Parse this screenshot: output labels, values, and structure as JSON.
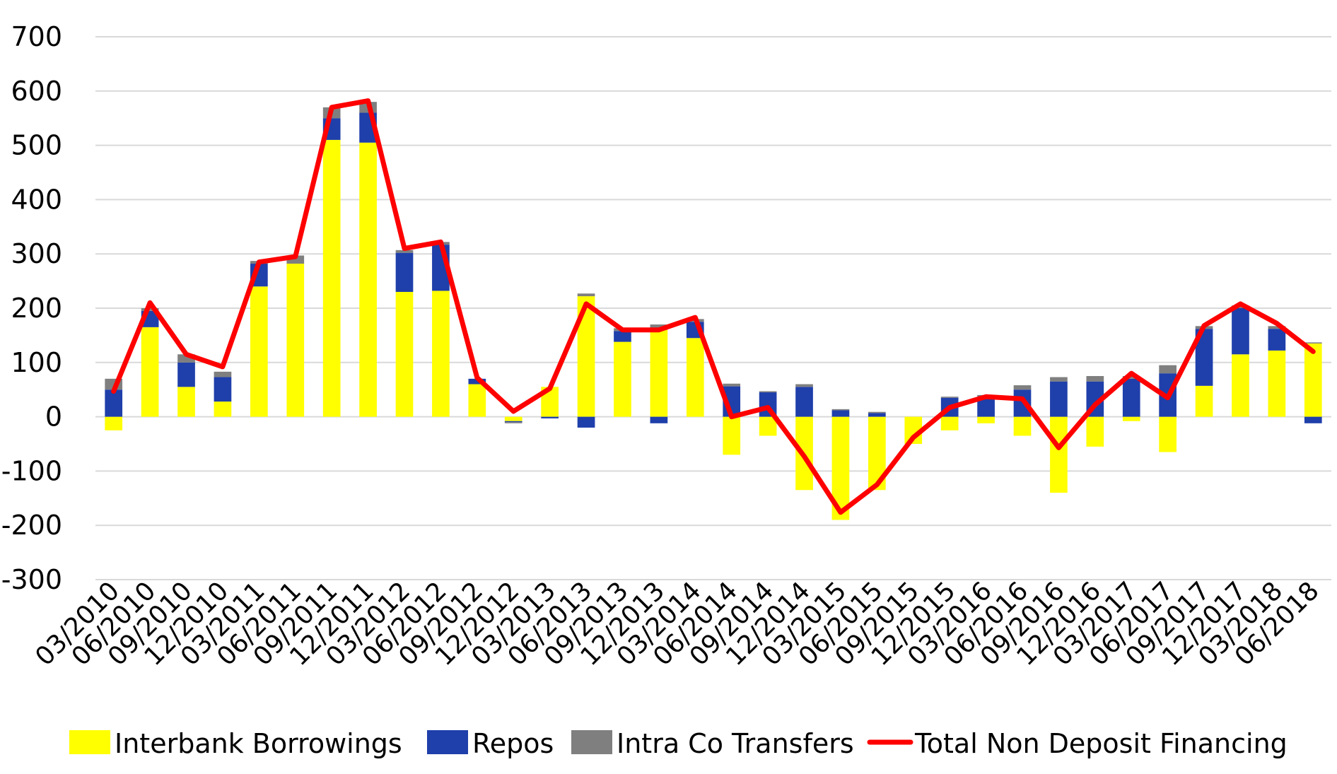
{
  "chart_data": {
    "type": "bar",
    "stacked": true,
    "title": "",
    "xlabel": "",
    "ylabel": "",
    "ylim": [
      -300,
      700
    ],
    "yticks": [
      700,
      600,
      500,
      400,
      300,
      200,
      100,
      0,
      -100,
      -200,
      -300
    ],
    "grid": true,
    "legend_position": "bottom",
    "categories": [
      "03/2010",
      "06/2010",
      "09/2010",
      "12/2010",
      "03/2011",
      "06/2011",
      "09/2011",
      "12/2011",
      "03/2012",
      "06/2012",
      "09/2012",
      "12/2012",
      "03/2013",
      "06/2013",
      "09/2013",
      "12/2013",
      "03/2014",
      "06/2014",
      "09/2014",
      "12/2014",
      "03/2015",
      "06/2015",
      "09/2015",
      "12/2015",
      "03/2016",
      "06/2016",
      "09/2016",
      "12/2016",
      "03/2017",
      "06/2017",
      "09/2017",
      "12/2017",
      "03/2018",
      "06/2018"
    ],
    "series": [
      {
        "name": "Interbank Borrowings",
        "kind": "bar",
        "color": "#FFFF00",
        "values": [
          -25,
          165,
          55,
          28,
          240,
          282,
          510,
          505,
          230,
          232,
          60,
          -8,
          55,
          222,
          138,
          160,
          145,
          -70,
          -35,
          -135,
          -190,
          -135,
          -50,
          -25,
          -12,
          -35,
          -140,
          -55,
          -8,
          -65,
          57,
          115,
          122,
          135
        ]
      },
      {
        "name": "Repos",
        "kind": "bar",
        "color": "#1F3FAA",
        "values": [
          50,
          30,
          45,
          45,
          42,
          0,
          40,
          55,
          72,
          85,
          10,
          -2,
          -3,
          -20,
          20,
          -12,
          30,
          56,
          45,
          55,
          12,
          7,
          0,
          35,
          35,
          50,
          65,
          65,
          70,
          80,
          105,
          85,
          40,
          -12
        ]
      },
      {
        "name": "Intra Co Transfers",
        "kind": "bar",
        "color": "#7F7F7F",
        "values": [
          20,
          5,
          15,
          10,
          5,
          15,
          20,
          20,
          5,
          5,
          0,
          -2,
          0,
          5,
          5,
          10,
          5,
          5,
          2,
          5,
          2,
          2,
          0,
          2,
          5,
          8,
          8,
          10,
          5,
          15,
          5,
          5,
          5,
          2
        ]
      },
      {
        "name": "Total Non Deposit Financing",
        "kind": "line",
        "color": "#FF0000",
        "values": [
          47,
          210,
          115,
          92,
          285,
          295,
          570,
          582,
          310,
          322,
          72,
          10,
          52,
          208,
          160,
          160,
          183,
          0,
          17,
          -73,
          -176,
          -125,
          -38,
          17,
          37,
          33,
          -57,
          22,
          80,
          35,
          168,
          208,
          172,
          120
        ]
      }
    ]
  },
  "legend": {
    "items": [
      {
        "label": "Interbank Borrowings",
        "color": "#FFFF00",
        "kind": "box"
      },
      {
        "label": "Repos",
        "color": "#1F3FAA",
        "kind": "box"
      },
      {
        "label": "Intra Co Transfers",
        "color": "#7F7F7F",
        "kind": "box"
      },
      {
        "label": "Total Non Deposit Financing",
        "color": "#FF0000",
        "kind": "line"
      }
    ]
  }
}
